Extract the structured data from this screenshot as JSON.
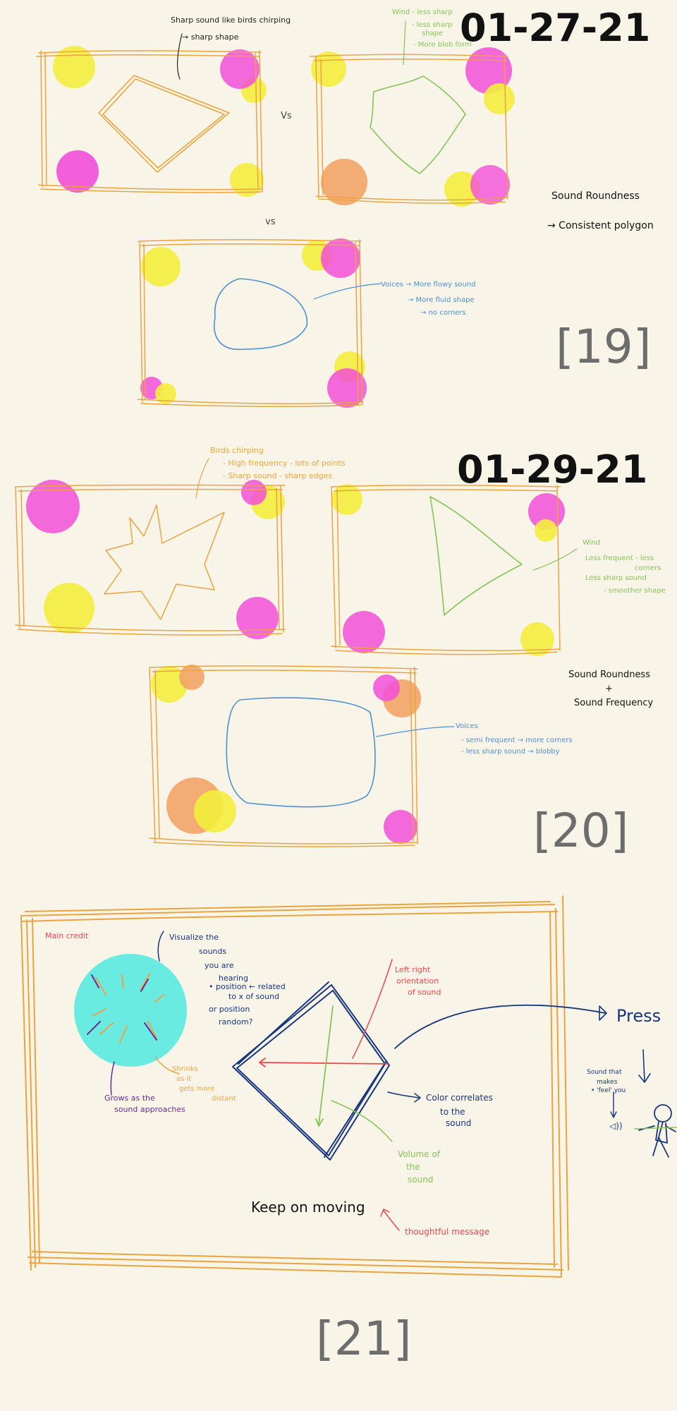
{
  "dates": {
    "d19": "01-27-21",
    "d20": "01-29-21"
  },
  "page_numbers": {
    "p19": "[19]",
    "p20": "[20]",
    "p21": "[21]"
  },
  "sketch19": {
    "note_top": [
      "Sharp sound like birds chirping",
      "→ sharp shape"
    ],
    "vs_1": "Vs",
    "vs_2": "vs",
    "note_wind": [
      "Wind - less sharp",
      "- less sharp",
      "shape",
      "- More blob form"
    ],
    "note_right": [
      "Sound Roundness",
      "→ Consistent polygon"
    ],
    "note_voice": [
      "Voices → More flowy sound",
      "→ More fluid shape",
      "→ no corners"
    ]
  },
  "sketch20": {
    "note_birds": [
      "Birds chirping",
      "- High frequency - lots of points",
      "- Sharp sound - sharp edges"
    ],
    "note_wind": [
      "Wind",
      "Less frequent - less",
      "corners",
      "Less sharp sound",
      "- smoother shape"
    ],
    "note_right": [
      "Sound Roundness",
      "+",
      "Sound Frequency"
    ],
    "note_voices": [
      "Voices",
      "- semi frequent → more corners",
      "- less sharp sound → blobby"
    ]
  },
  "sketch21": {
    "main_credit": "Main credit",
    "visualize": [
      "Visualize the",
      "sounds",
      "you are",
      "hearing",
      "• position ← related",
      "to x of sound",
      "or position",
      "random?"
    ],
    "left_right": [
      "Left right",
      "orientation",
      "of sound"
    ],
    "press": "Press",
    "sound_that": [
      "Sound that",
      "makes",
      "• 'feel' you"
    ],
    "grows": [
      "Grows as the",
      "sound approaches"
    ],
    "shrinks": [
      "Shrinks",
      "as it",
      "gets more",
      "distant"
    ],
    "color": [
      "Color correlates",
      "to the",
      "sound"
    ],
    "volume": [
      "Volume of",
      "the",
      "sound"
    ],
    "keep": "Keep on moving",
    "thoughtful": "thoughtful message"
  },
  "colors": {
    "background": "#f8f5e8",
    "frame_orange": "#eba33f",
    "yellow": "#f3ee3d",
    "magenta": "#f24fd8",
    "peach": "#f2a466",
    "green": "#86c357",
    "blue": "#4c8fd4",
    "navy": "#17367e",
    "teal": "#69ebe2",
    "red": "#e9474b",
    "purple": "#6a2a95",
    "gray_number": "#6d6d6d",
    "ink": "#111111"
  },
  "icons": [
    "person-figure-icon",
    "arrow-icon"
  ]
}
